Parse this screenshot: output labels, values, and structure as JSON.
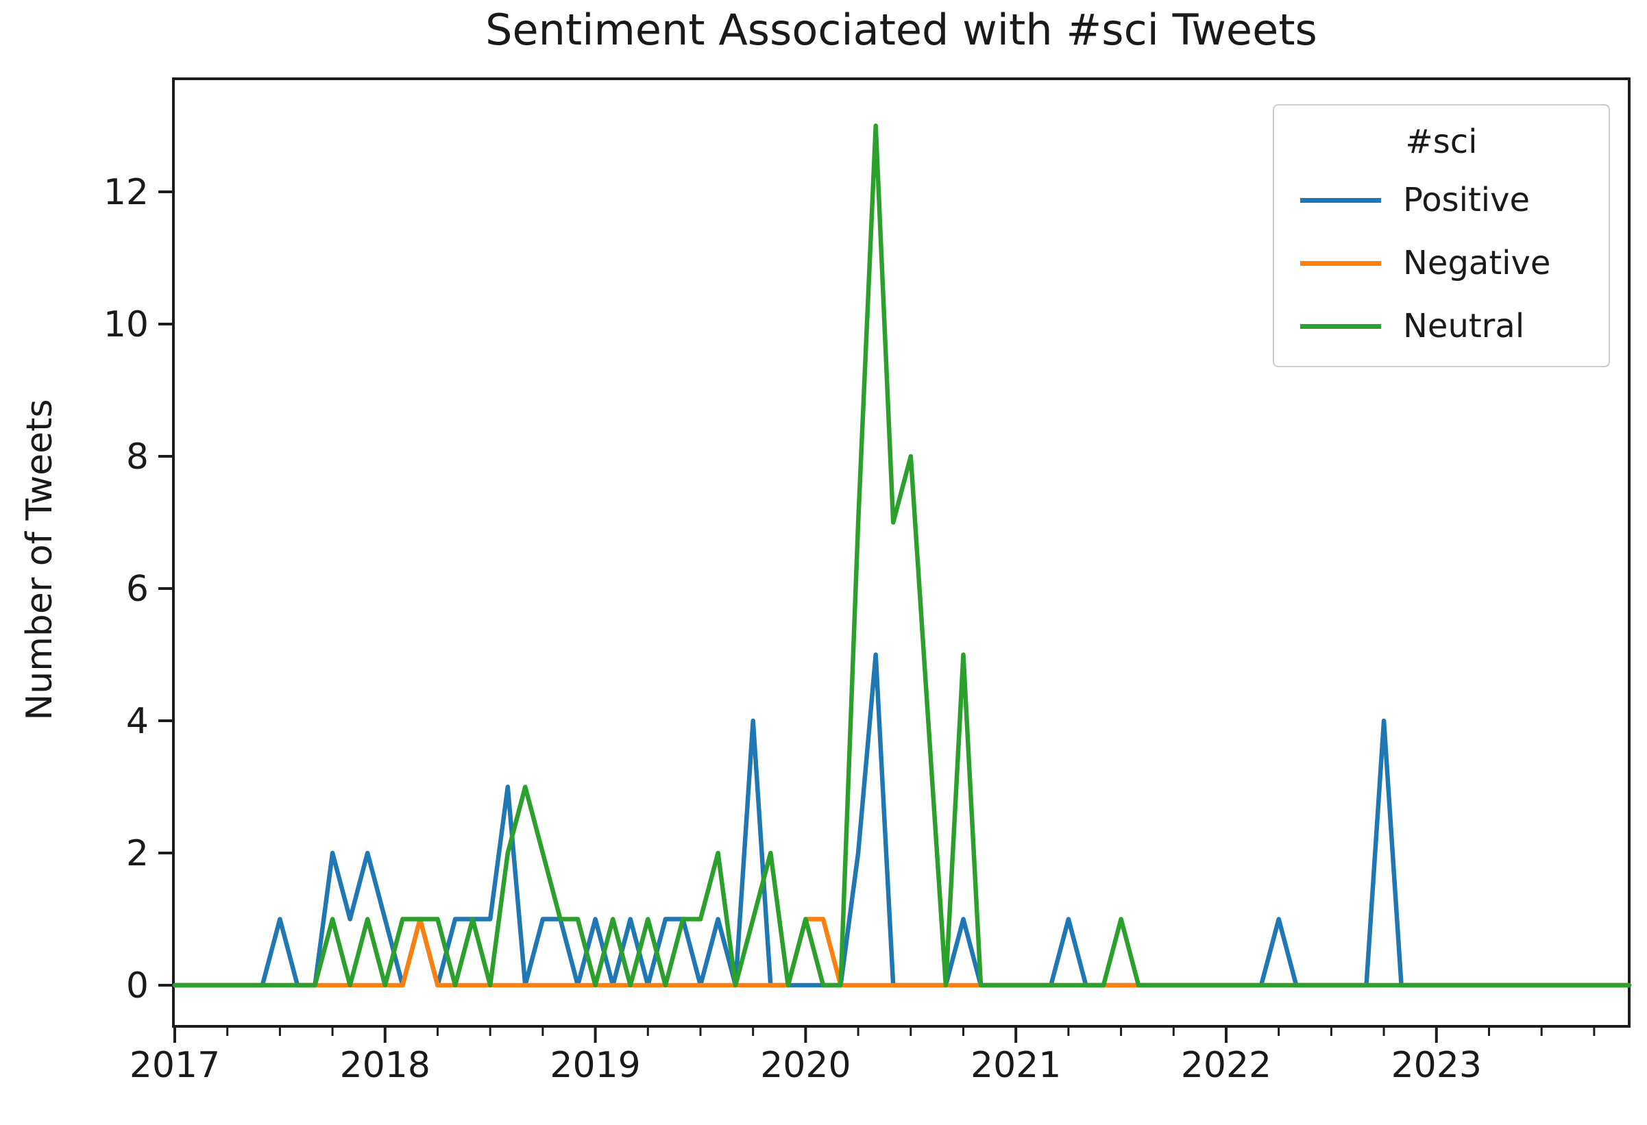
{
  "title": "Sentiment Associated with #sci Tweets",
  "y_axis_title": "Number of Tweets",
  "legend": {
    "title": "#sci",
    "entries": [
      {
        "label": "Positive",
        "color": "#1f77b4"
      },
      {
        "label": "Negative",
        "color": "#ff7f0e"
      },
      {
        "label": "Neutral",
        "color": "#2ca02c"
      }
    ]
  },
  "axes": {
    "x_major_tick_labels": [
      "2017",
      "2018",
      "2019",
      "2020",
      "2021",
      "2022",
      "2023"
    ],
    "y_tick_labels": [
      "0",
      "2",
      "4",
      "6",
      "8",
      "10",
      "12"
    ],
    "y_tick_values": [
      0,
      2,
      4,
      6,
      8,
      10,
      12
    ]
  },
  "chart_data": {
    "type": "line",
    "title": "Sentiment Associated with #sci Tweets",
    "xlabel": "",
    "ylabel": "Number of Tweets",
    "x_range": [
      "2017-01",
      "2023-12"
    ],
    "x_frequency": "monthly",
    "ylim": [
      -0.65,
      13.7
    ],
    "grid": false,
    "legend_position": "upper right",
    "legend_title": "#sci",
    "x": [
      "2017-01",
      "2017-02",
      "2017-03",
      "2017-04",
      "2017-05",
      "2017-06",
      "2017-07",
      "2017-08",
      "2017-09",
      "2017-10",
      "2017-11",
      "2017-12",
      "2018-01",
      "2018-02",
      "2018-03",
      "2018-04",
      "2018-05",
      "2018-06",
      "2018-07",
      "2018-08",
      "2018-09",
      "2018-10",
      "2018-11",
      "2018-12",
      "2019-01",
      "2019-02",
      "2019-03",
      "2019-04",
      "2019-05",
      "2019-06",
      "2019-07",
      "2019-08",
      "2019-09",
      "2019-10",
      "2019-11",
      "2019-12",
      "2020-01",
      "2020-02",
      "2020-03",
      "2020-04",
      "2020-05",
      "2020-06",
      "2020-07",
      "2020-08",
      "2020-09",
      "2020-10",
      "2020-11",
      "2020-12",
      "2021-01",
      "2021-02",
      "2021-03",
      "2021-04",
      "2021-05",
      "2021-06",
      "2021-07",
      "2021-08",
      "2021-09",
      "2021-10",
      "2021-11",
      "2021-12",
      "2022-01",
      "2022-02",
      "2022-03",
      "2022-04",
      "2022-05",
      "2022-06",
      "2022-07",
      "2022-08",
      "2022-09",
      "2022-10",
      "2022-11",
      "2022-12",
      "2023-01",
      "2023-02",
      "2023-03",
      "2023-04",
      "2023-05",
      "2023-06",
      "2023-07",
      "2023-08",
      "2023-09",
      "2023-10",
      "2023-11",
      "2023-12"
    ],
    "series": [
      {
        "name": "Positive",
        "color": "#1f77b4",
        "values": [
          0,
          0,
          0,
          0,
          0,
          0,
          1,
          0,
          0,
          2,
          1,
          2,
          1,
          0,
          1,
          0,
          1,
          1,
          1,
          3,
          0,
          1,
          1,
          0,
          1,
          0,
          1,
          0,
          1,
          1,
          0,
          1,
          0,
          4,
          0,
          0,
          0,
          0,
          0,
          2,
          5,
          0,
          0,
          0,
          0,
          1,
          0,
          0,
          0,
          0,
          0,
          1,
          0,
          0,
          0,
          0,
          0,
          0,
          0,
          0,
          0,
          0,
          0,
          1,
          0,
          0,
          0,
          0,
          0,
          4,
          0,
          0,
          0,
          0,
          0,
          0,
          0,
          0,
          0,
          0,
          0,
          0,
          0,
          0
        ]
      },
      {
        "name": "Negative",
        "color": "#ff7f0e",
        "values": [
          0,
          0,
          0,
          0,
          0,
          0,
          0,
          0,
          0,
          0,
          0,
          0,
          0,
          0,
          1,
          0,
          0,
          0,
          0,
          0,
          0,
          0,
          0,
          0,
          0,
          0,
          0,
          0,
          0,
          0,
          0,
          0,
          0,
          0,
          0,
          0,
          1,
          1,
          0,
          0,
          0,
          0,
          0,
          0,
          0,
          0,
          0,
          0,
          0,
          0,
          0,
          0,
          0,
          0,
          0,
          0,
          0,
          0,
          0,
          0,
          0,
          0,
          0,
          0,
          0,
          0,
          0,
          0,
          0,
          0,
          0,
          0,
          0,
          0,
          0,
          0,
          0,
          0,
          0,
          0,
          0,
          0,
          0,
          0
        ]
      },
      {
        "name": "Neutral",
        "color": "#2ca02c",
        "values": [
          0,
          0,
          0,
          0,
          0,
          0,
          0,
          0,
          0,
          1,
          0,
          1,
          0,
          1,
          1,
          1,
          0,
          1,
          0,
          2,
          3,
          2,
          1,
          1,
          0,
          1,
          0,
          1,
          0,
          1,
          1,
          2,
          0,
          1,
          2,
          0,
          1,
          0,
          0,
          7,
          13,
          7,
          8,
          4,
          0,
          5,
          0,
          0,
          0,
          0,
          0,
          0,
          0,
          0,
          1,
          0,
          0,
          0,
          0,
          0,
          0,
          0,
          0,
          0,
          0,
          0,
          0,
          0,
          0,
          0,
          0,
          0,
          0,
          0,
          0,
          0,
          0,
          0,
          0,
          0,
          0,
          0,
          0,
          0
        ]
      }
    ]
  }
}
